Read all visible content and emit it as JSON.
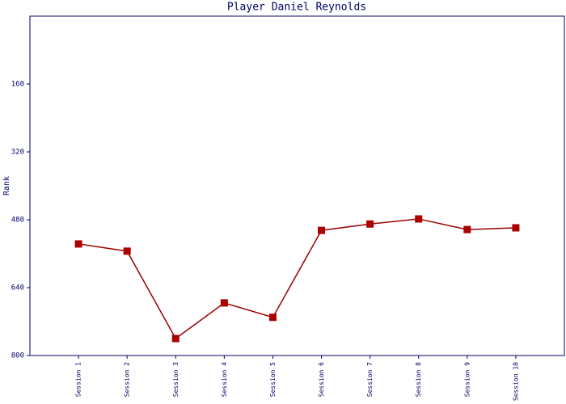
{
  "chart_data": {
    "type": "line",
    "title": "Player Daniel Reynolds",
    "y_label": "Rank",
    "categories": [
      "Session 1",
      "Session 2",
      "Session 3",
      "Session 4",
      "Session 5",
      "Session 6",
      "Session 7",
      "Session 8",
      "Session 9",
      "Session 10"
    ],
    "series": [
      {
        "name": "Rank",
        "color": "#aa0000",
        "values": [
          537,
          554,
          760,
          676,
          710,
          505,
          490,
          478,
          503,
          499
        ]
      }
    ],
    "ylim": [
      800,
      0
    ],
    "yticks": [
      160,
      320,
      480,
      640,
      800
    ],
    "grid": false
  }
}
